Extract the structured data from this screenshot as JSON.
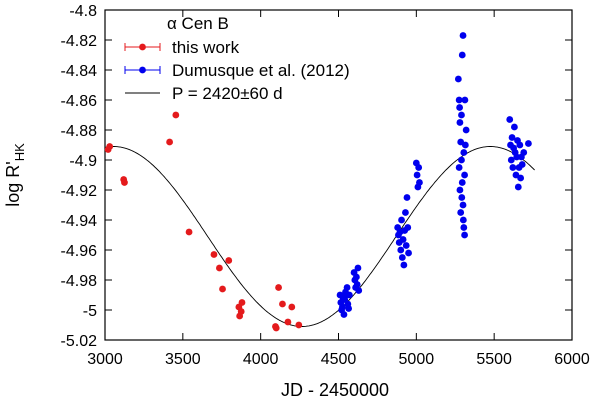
{
  "chart_data": {
    "type": "scatter",
    "title": "α Cen B",
    "xlabel": "JD - 2450000",
    "ylabel_main": "log R'",
    "ylabel_sub": "HK",
    "xlim": [
      3000,
      6000
    ],
    "ylim": [
      -5.02,
      -4.8
    ],
    "x_ticks": [
      "3000",
      "3500",
      "4000",
      "4500",
      "5000",
      "5500",
      "6000"
    ],
    "y_ticks": [
      "-4.8",
      "-4.82",
      "-4.84",
      "-4.86",
      "-4.88",
      "-4.9",
      "-4.92",
      "-4.94",
      "-4.96",
      "-4.98",
      "-5",
      "-5.02"
    ],
    "legend_position": "top-left",
    "series": [
      {
        "name": "this work",
        "color": "#e41a1c",
        "marker": "circle",
        "x": [
          3020,
          3030,
          3120,
          3125,
          3415,
          3455,
          3540,
          3700,
          3735,
          3755,
          3795,
          3860,
          3865,
          3875,
          3880,
          4095,
          4100,
          4115,
          4140,
          4175,
          4200,
          4245
        ],
        "y": [
          -4.893,
          -4.891,
          -4.913,
          -4.915,
          -4.888,
          -4.87,
          -4.948,
          -4.963,
          -4.972,
          -4.986,
          -4.967,
          -4.998,
          -5.004,
          -5.001,
          -4.995,
          -5.011,
          -5.012,
          -4.985,
          -4.996,
          -5.008,
          -4.998,
          -5.01
        ]
      },
      {
        "name": "Dumusque et al. (2012)",
        "color": "#0000ee",
        "marker": "circle",
        "x": [
          4510,
          4515,
          4520,
          4525,
          4530,
          4535,
          4540,
          4545,
          4550,
          4555,
          4560,
          4565,
          4570,
          4600,
          4605,
          4610,
          4615,
          4620,
          4625,
          4630,
          4880,
          4885,
          4890,
          4895,
          4900,
          4905,
          4910,
          4915,
          4920,
          4925,
          4930,
          4935,
          4940,
          4945,
          4950,
          5000,
          5005,
          5010,
          5015,
          5020,
          5270,
          5275,
          5280,
          5285,
          5290,
          5295,
          5300,
          5305,
          5310,
          5315,
          5320,
          5275,
          5280,
          5285,
          5290,
          5295,
          5300,
          5305,
          5310,
          5278,
          5292,
          5302,
          5312,
          5600,
          5605,
          5610,
          5615,
          5620,
          5625,
          5630,
          5635,
          5640,
          5645,
          5650,
          5655,
          5660,
          5665,
          5670,
          5675,
          5680,
          5690,
          5720
        ],
        "y": [
          -4.99,
          -4.995,
          -5.0,
          -4.998,
          -4.992,
          -5.003,
          -4.993,
          -4.988,
          -4.99,
          -4.985,
          -4.996,
          -4.999,
          -4.99,
          -4.975,
          -4.98,
          -4.985,
          -4.978,
          -4.983,
          -4.972,
          -4.987,
          -4.945,
          -4.95,
          -4.955,
          -4.948,
          -4.96,
          -4.94,
          -4.965,
          -4.953,
          -4.97,
          -4.947,
          -4.935,
          -4.957,
          -4.925,
          -4.945,
          -4.962,
          -4.902,
          -4.91,
          -4.918,
          -4.905,
          -4.915,
          -4.846,
          -4.86,
          -4.875,
          -4.888,
          -4.9,
          -4.915,
          -4.93,
          -4.945,
          -4.95,
          -4.89,
          -4.88,
          -4.905,
          -4.92,
          -4.935,
          -4.87,
          -4.83,
          -4.817,
          -4.895,
          -4.91,
          -4.865,
          -4.925,
          -4.94,
          -4.86,
          -4.873,
          -4.89,
          -4.9,
          -4.885,
          -4.905,
          -4.892,
          -4.878,
          -4.895,
          -4.91,
          -4.898,
          -4.887,
          -4.918,
          -4.905,
          -4.89,
          -4.912,
          -4.898,
          -4.903,
          -4.895,
          -4.889
        ]
      },
      {
        "name": "P = 2420±60 d",
        "color": "#000000",
        "type": "line",
        "period": 2420,
        "period_err": 60,
        "mean": -4.951,
        "amplitude": 0.06,
        "phase_ref_jd": 5475
      }
    ]
  }
}
